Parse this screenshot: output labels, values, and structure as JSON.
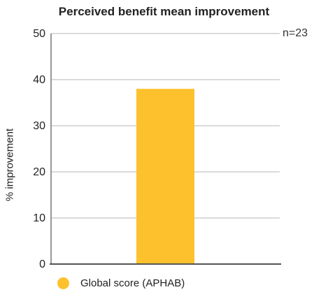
{
  "chart_data": {
    "type": "bar",
    "title": "Perceived benefit mean improvement",
    "ylabel": "% improvement",
    "xlabel": "",
    "annotation": "n=23",
    "ylim": [
      0,
      50
    ],
    "yticks": [
      0,
      10,
      20,
      30,
      40,
      50
    ],
    "grid": true,
    "legend_position": "bottom-left",
    "series": [
      {
        "name": "Global score (APHAB)",
        "values": [
          38
        ],
        "color": "#FDC12D"
      }
    ]
  }
}
